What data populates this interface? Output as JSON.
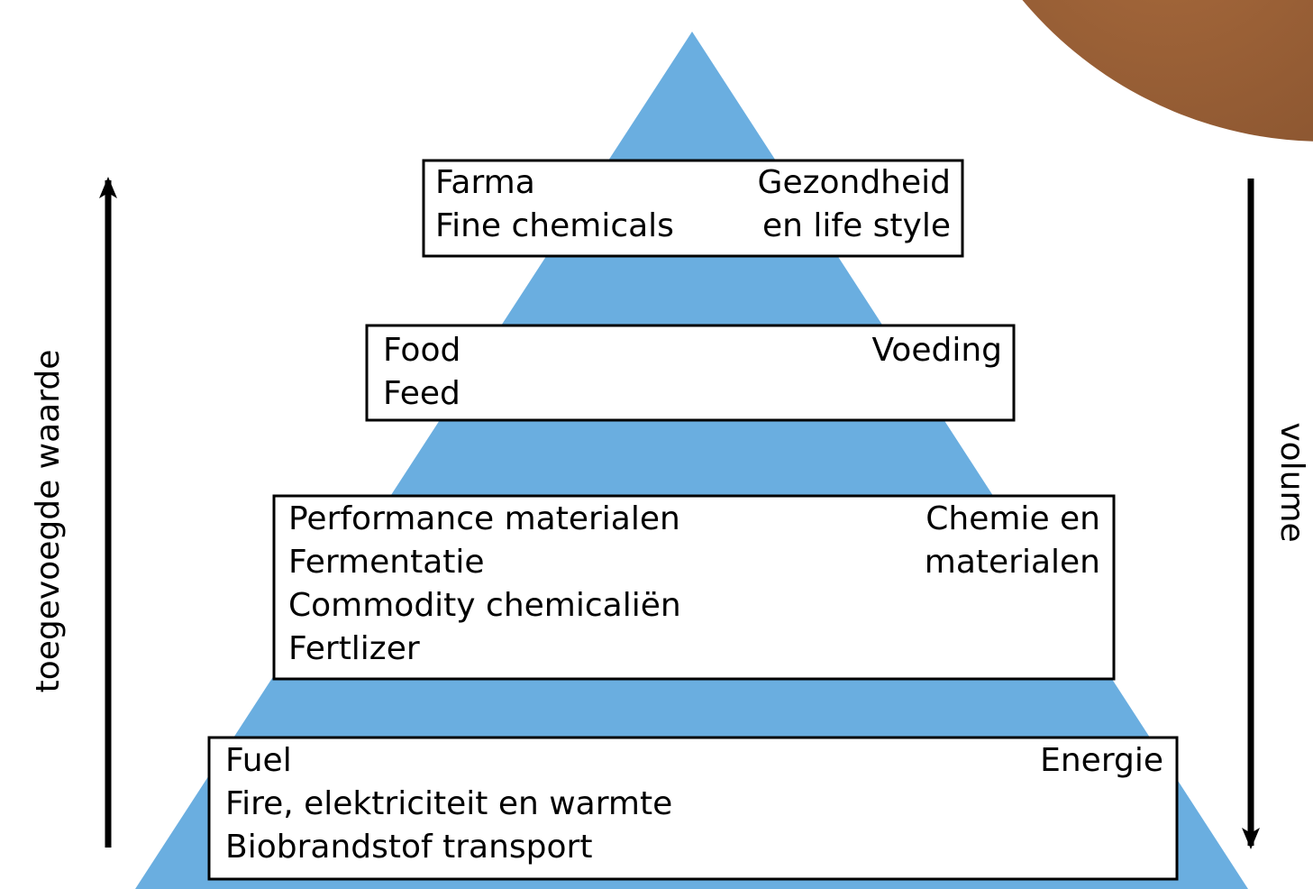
{
  "axis_left": "toegevoegde waarde",
  "axis_right": "volume",
  "levels": [
    {
      "left": [
        "Farma",
        "Fine chemicals"
      ],
      "right": [
        "Gezondheid",
        "en life style"
      ]
    },
    {
      "left": [
        "Food",
        "Feed"
      ],
      "right": [
        "Voeding"
      ]
    },
    {
      "left": [
        "Performance materialen",
        "Fermentatie",
        "Commodity chemicaliën",
        "Fertlizer"
      ],
      "right": [
        "Chemie en",
        "materialen"
      ]
    },
    {
      "left": [
        "Fuel",
        "Fire, elektriciteit en warmte",
        "Biobrandstof transport"
      ],
      "right": [
        "Energie"
      ]
    }
  ]
}
